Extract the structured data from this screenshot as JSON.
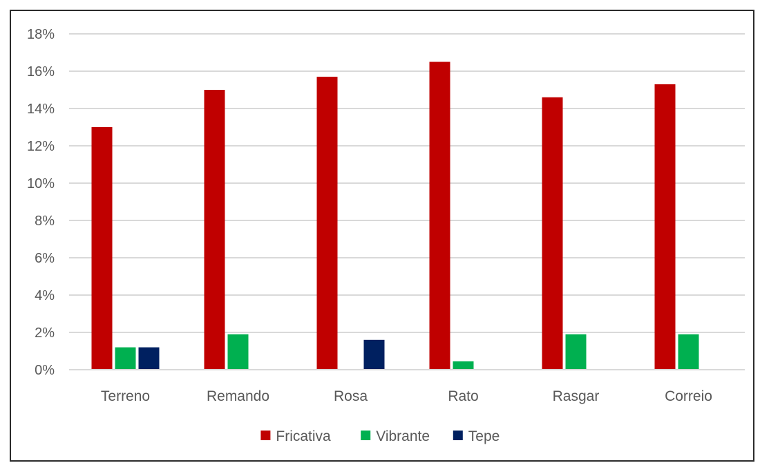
{
  "chart_data": {
    "type": "bar",
    "categories": [
      "Terreno",
      "Remando",
      "Rosa",
      "Rato",
      "Rasgar",
      "Correio"
    ],
    "series": [
      {
        "name": "Fricativa",
        "color": "#c00000",
        "values": [
          13.0,
          15.0,
          15.7,
          16.5,
          14.6,
          15.3
        ]
      },
      {
        "name": "Vibrante",
        "color": "#00b050",
        "values": [
          1.2,
          1.9,
          0,
          0.45,
          1.9,
          1.9
        ]
      },
      {
        "name": "Tepe",
        "color": "#002060",
        "values": [
          1.2,
          0,
          1.6,
          0,
          0,
          0
        ]
      }
    ],
    "yticks": [
      "0%",
      "2%",
      "4%",
      "6%",
      "8%",
      "10%",
      "12%",
      "14%",
      "16%",
      "18%"
    ],
    "ylim": [
      0,
      18
    ],
    "grid": true,
    "legend_position": "bottom",
    "title": "",
    "xlabel": "",
    "ylabel": ""
  }
}
